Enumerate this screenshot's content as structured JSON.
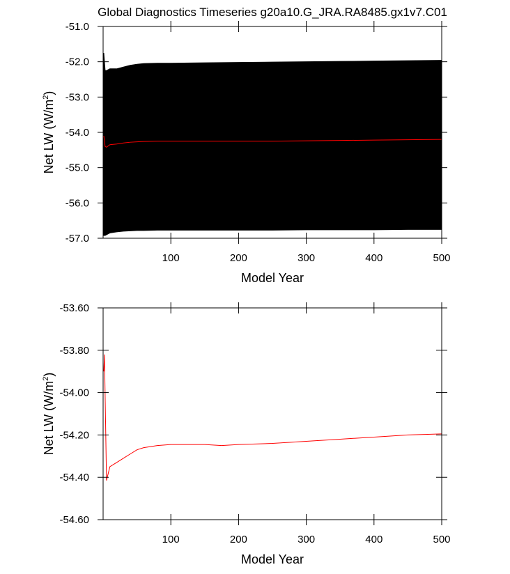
{
  "chart_data": [
    {
      "type": "line",
      "title": "Global Diagnostics Timeseries g20a10.G_JRA.RA8485.gx1v7.C01",
      "xlabel": "Model Year",
      "ylabel": [
        "Net LW (W/m",
        "2",
        ")"
      ],
      "x": [
        1,
        3,
        5,
        10,
        20,
        30,
        40,
        50,
        60,
        80,
        100,
        150,
        200,
        250,
        300,
        350,
        400,
        450,
        500
      ],
      "series": [
        {
          "color": "#000000",
          "values": [
            -51.75,
            -52.25,
            -52.25,
            -52.2,
            -52.2,
            -52.15,
            -52.1,
            -52.07,
            -52.05,
            -52.04,
            -52.04,
            -52.03,
            -52.02,
            -52.01,
            -52.0,
            -51.99,
            -51.98,
            -51.97,
            -51.96
          ]
        },
        {
          "color": "#000000",
          "values": [
            -56.92,
            -56.92,
            -56.9,
            -56.85,
            -56.82,
            -56.8,
            -56.79,
            -56.78,
            -56.78,
            -56.77,
            -56.77,
            -56.77,
            -56.77,
            -56.77,
            -56.76,
            -56.76,
            -56.76,
            -56.75,
            -56.75
          ]
        },
        {
          "color": "#ff0000",
          "values": [
            -54.1,
            -54.4,
            -54.42,
            -54.35,
            -54.33,
            -54.3,
            -54.28,
            -54.27,
            -54.26,
            -54.25,
            -54.25,
            -54.25,
            -54.25,
            -54.25,
            -54.24,
            -54.23,
            -54.22,
            -54.21,
            -54.2
          ]
        }
      ],
      "fill_between": [
        0,
        1
      ],
      "xlim": [
        0,
        500
      ],
      "xticks": [
        100,
        200,
        300,
        400,
        500
      ],
      "ylim": [
        -57,
        -51
      ],
      "yticks": [
        {
          "value": -51,
          "label": "-51.0"
        },
        {
          "value": -52,
          "label": "-52.0"
        },
        {
          "value": -53,
          "label": "-53.0"
        },
        {
          "value": -54,
          "label": "-54.0"
        },
        {
          "value": -55,
          "label": "-55.0"
        },
        {
          "value": -56,
          "label": "-56.0"
        },
        {
          "value": -57,
          "label": "-57.0"
        }
      ]
    },
    {
      "type": "line",
      "xlabel": "Model Year",
      "ylabel": [
        "Net LW (W/m",
        "2",
        ")"
      ],
      "x": [
        1,
        2,
        5,
        10,
        20,
        30,
        40,
        50,
        60,
        80,
        100,
        150,
        175,
        200,
        250,
        300,
        350,
        400,
        450,
        500
      ],
      "series": [
        {
          "color": "#ff0000",
          "values": [
            -53.9,
            -53.82,
            -54.415,
            -54.35,
            -54.33,
            -54.31,
            -54.29,
            -54.27,
            -54.26,
            -54.25,
            -54.245,
            -54.245,
            -54.25,
            -54.245,
            -54.24,
            -54.23,
            -54.22,
            -54.21,
            -54.2,
            -54.195
          ]
        }
      ],
      "xlim": [
        0,
        500
      ],
      "xticks": [
        100,
        200,
        300,
        400,
        500
      ],
      "ylim": [
        -54.6,
        -53.6
      ],
      "yticks": [
        {
          "value": -53.6,
          "label": "-53.60"
        },
        {
          "value": -53.8,
          "label": "-53.80"
        },
        {
          "value": -54.0,
          "label": "-54.00"
        },
        {
          "value": -54.2,
          "label": "-54.20"
        },
        {
          "value": -54.4,
          "label": "-54.40"
        },
        {
          "value": -54.6,
          "label": "-54.60"
        }
      ]
    }
  ]
}
